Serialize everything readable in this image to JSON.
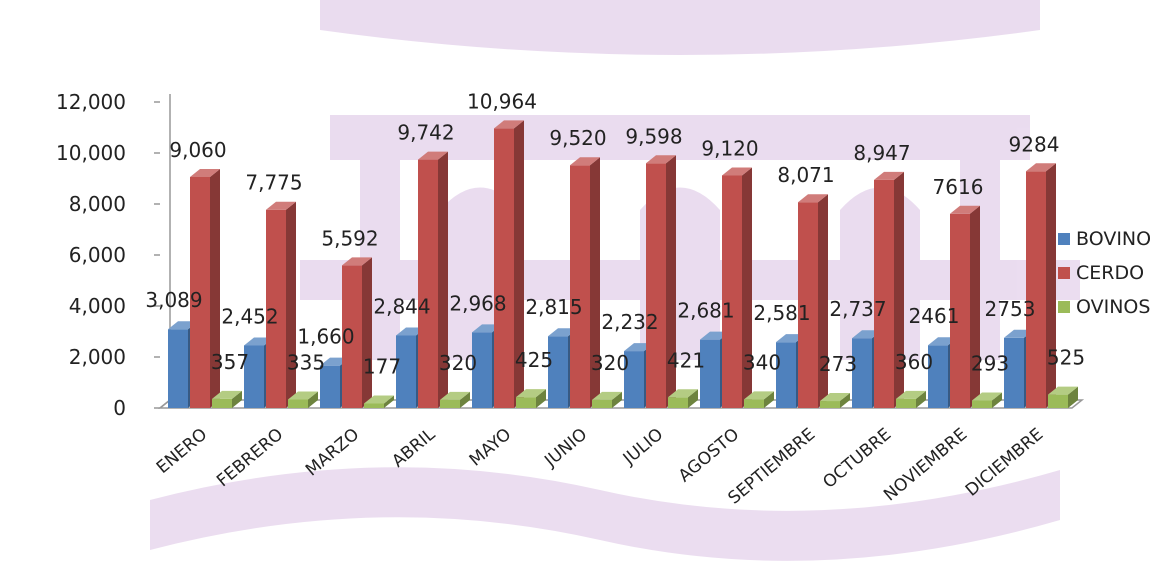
{
  "chart_data": {
    "type": "bar",
    "style": "3d-clustered-column",
    "categories": [
      "ENERO",
      "FEBRERO",
      "MARZO",
      "ABRIL",
      "MAYO",
      "JUNIO",
      "JULIO",
      "AGOSTO",
      "SEPTIEMBRE",
      "OCTUBRE",
      "NOVIEMBRE",
      "DICIEMBRE"
    ],
    "series": [
      {
        "name": "BOVINO",
        "color": "#4f81bd",
        "values": [
          3089,
          2452,
          1660,
          2844,
          2968,
          2815,
          2232,
          2681,
          2581,
          2737,
          2461,
          2753
        ],
        "labels": [
          "3,089",
          "2,452",
          "1,660",
          "2,844",
          "2,968",
          "2,815",
          "2,232",
          "2,681",
          "2,581",
          "2,737",
          "2461",
          "2753"
        ]
      },
      {
        "name": "CERDO",
        "color": "#c0504d",
        "values": [
          9060,
          7775,
          5592,
          9742,
          10964,
          9520,
          9598,
          9120,
          8071,
          8947,
          7616,
          9284
        ],
        "labels": [
          "9,060",
          "7,775",
          "5,592",
          "9,742",
          "10,964",
          "9,520",
          "9,598",
          "9,120",
          "8,071",
          "8,947",
          "7616",
          "9284"
        ]
      },
      {
        "name": "OVINOS",
        "color": "#9bbb59",
        "values": [
          357,
          335,
          177,
          320,
          425,
          320,
          421,
          340,
          273,
          360,
          293,
          525
        ],
        "labels": [
          "357",
          "335",
          "177",
          "320",
          "425",
          "320",
          "421",
          "340",
          "273",
          "360",
          "293",
          "525"
        ]
      }
    ],
    "yticks": [
      "0",
      "2,000",
      "4,000",
      "6,000",
      "8,000",
      "10,000",
      "12,000"
    ],
    "ylim": [
      0,
      12000
    ],
    "title": "",
    "xlabel": "",
    "ylabel": "",
    "legend_position": "right",
    "watermark": "faded purple emblem"
  }
}
